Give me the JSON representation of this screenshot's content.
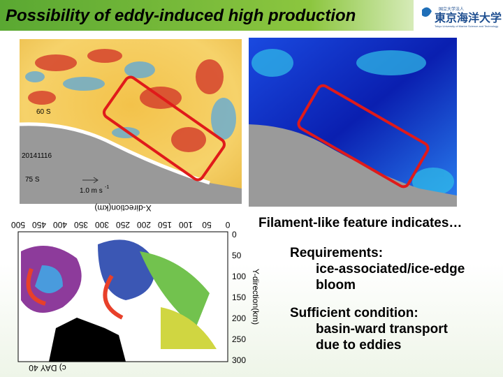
{
  "header": {
    "title": "Possibility of eddy-induced high production",
    "logo_small": "国立大学法人",
    "logo_name": "東京海洋大学",
    "logo_sub": "Tokyo University of Marine Science and Technology"
  },
  "left_map": {
    "lat_60": "60 S",
    "date": "20141116",
    "lat_75": "75 S",
    "scale": "1.0 m s",
    "scale_exp": "-1"
  },
  "model_plot": {
    "x_label": "X-direction(km)",
    "x_ticks": [
      500,
      450,
      400,
      350,
      300,
      250,
      200,
      150,
      100,
      50,
      0
    ],
    "y_label": "Y-direction(km)",
    "y_ticks": [
      0,
      50,
      100,
      150,
      200,
      250,
      300
    ],
    "panel": "c) DAY 40"
  },
  "text": {
    "lead": "Filament-like feature indicates…",
    "req_head": "Requirements:",
    "req_body": [
      "ice-associated/ice-edge",
      "bloom"
    ],
    "suf_head": "Sufficient condition:",
    "suf_body": [
      "basin-ward transport",
      "due to eddies"
    ]
  }
}
